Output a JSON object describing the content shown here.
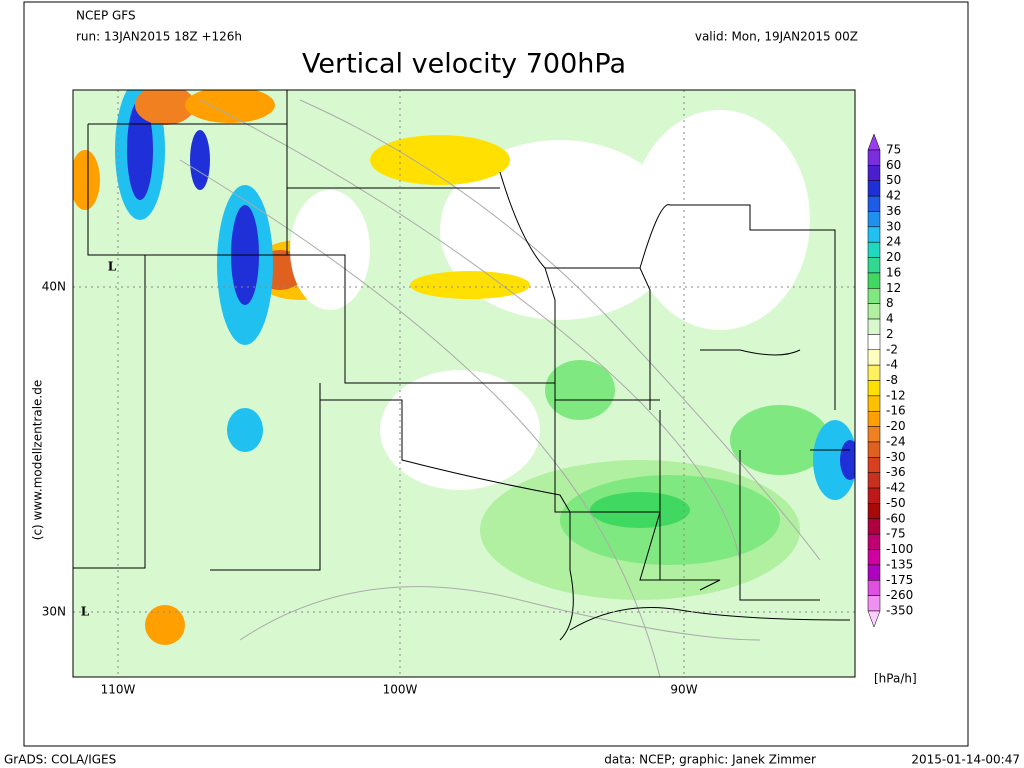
{
  "header": {
    "model": "NCEP GFS",
    "run": "run: 13JAN2015 18Z +126h",
    "valid": "valid: Mon, 19JAN2015 00Z",
    "title": "Vertical velocity 700hPa"
  },
  "map": {
    "lat_labels": [
      "40N",
      "30N"
    ],
    "lon_labels": [
      "110W",
      "100W",
      "90W"
    ],
    "lows": [
      "L",
      "L"
    ],
    "watermark": "(c) www.modellzentrale.de"
  },
  "colorbar": {
    "labels": [
      75,
      60,
      50,
      42,
      36,
      30,
      24,
      20,
      16,
      12,
      8,
      4,
      2,
      -2,
      -4,
      -8,
      -12,
      -16,
      -20,
      -24,
      -30,
      -36,
      -42,
      -50,
      -60,
      -75,
      -100,
      -135,
      -175,
      -260,
      -350
    ],
    "colors": [
      "#9a3cf0",
      "#7b2de0",
      "#4b1fd0",
      "#2030d8",
      "#1e5ce8",
      "#2090f0",
      "#20c0f0",
      "#20d8c0",
      "#30d890",
      "#40d860",
      "#80e880",
      "#b0f0a0",
      "#d8f8d0",
      "#ffffff",
      "#ffffc0",
      "#fff060",
      "#ffe000",
      "#ffc000",
      "#ffa000",
      "#f08020",
      "#e06020",
      "#d84020",
      "#c83020",
      "#c01818",
      "#a80a0a",
      "#b00040",
      "#c00070",
      "#d000a0",
      "#b000c0",
      "#e050e0",
      "#f090f0",
      "#ffd0ff"
    ],
    "unit": "[hPa/h]"
  },
  "footer": {
    "left": "GrADS: COLA/IGES",
    "center": "data: NCEP; graphic: Janek Zimmer",
    "right": "2015-01-14-00:47"
  }
}
